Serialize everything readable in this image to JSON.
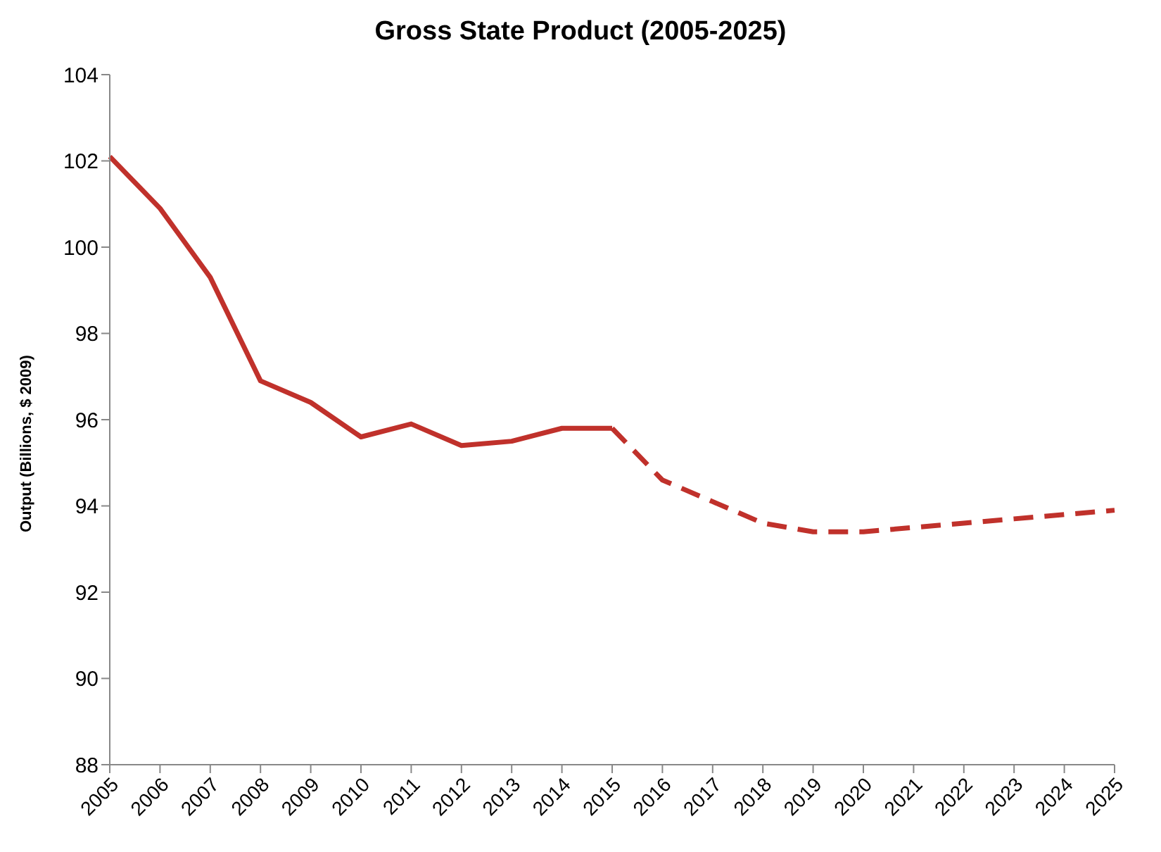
{
  "chart_data": {
    "type": "line",
    "title": "Gross State Product (2005-2025)",
    "ylabel": "Output (Billions, $ 2009)",
    "categories": [
      "2005",
      "2006",
      "2007",
      "2008",
      "2009",
      "2010",
      "2011",
      "2012",
      "2013",
      "2014",
      "2015",
      "2016",
      "2017",
      "2018",
      "2019",
      "2020",
      "2021",
      "2022",
      "2023",
      "2024",
      "2025"
    ],
    "series": [
      {
        "color": "#c0312b",
        "line_style": "solid",
        "values": [
          102.1,
          100.9,
          99.3,
          96.9,
          96.4,
          95.6,
          95.9,
          95.4,
          95.5,
          95.8,
          95.8,
          null,
          null,
          null,
          null,
          null,
          null,
          null,
          null,
          null,
          null
        ]
      },
      {
        "color": "#c0312b",
        "line_style": "dashed",
        "values": [
          null,
          null,
          null,
          null,
          null,
          null,
          null,
          null,
          null,
          null,
          95.8,
          94.6,
          94.1,
          93.6,
          93.4,
          93.4,
          93.5,
          93.6,
          93.7,
          93.8,
          93.9
        ]
      }
    ],
    "ylim": [
      88,
      104
    ],
    "yticks": [
      88,
      90,
      92,
      94,
      96,
      98,
      100,
      102,
      104
    ],
    "grid": false,
    "marker": "none"
  }
}
